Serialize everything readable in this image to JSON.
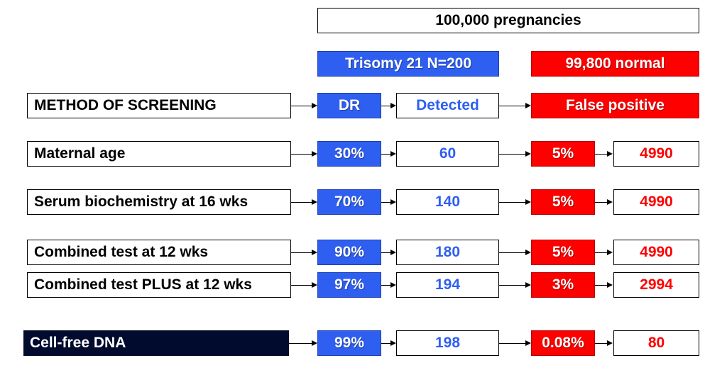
{
  "header": {
    "total": "100,000 pregnancies",
    "trisomy": "Trisomy 21 N=200",
    "normal": "99,800 normal"
  },
  "columns": {
    "method": "METHOD OF SCREENING",
    "dr": "DR",
    "detected": "Detected",
    "false_positive": "False positive"
  },
  "rows": [
    {
      "method": "Maternal age",
      "dr": "30%",
      "detected": "60",
      "fpr": "5%",
      "fp_count": "4990"
    },
    {
      "method": "Serum biochemistry at 16 wks",
      "dr": "70%",
      "detected": "140",
      "fpr": "5%",
      "fp_count": "4990"
    },
    {
      "method": "Combined test at 12 wks",
      "dr": "90%",
      "detected": "180",
      "fpr": "5%",
      "fp_count": "4990"
    },
    {
      "method": "Combined test PLUS at 12 wks",
      "dr": "97%",
      "detected": "194",
      "fpr": "3%",
      "fp_count": "2994"
    },
    {
      "method": "Cell-free DNA",
      "dr": "99%",
      "detected": "198",
      "fpr": "0.08%",
      "fp_count": "80"
    }
  ],
  "colors": {
    "blue": "#2f5ff0",
    "red": "#ff0000",
    "dark": "#000b2e"
  }
}
